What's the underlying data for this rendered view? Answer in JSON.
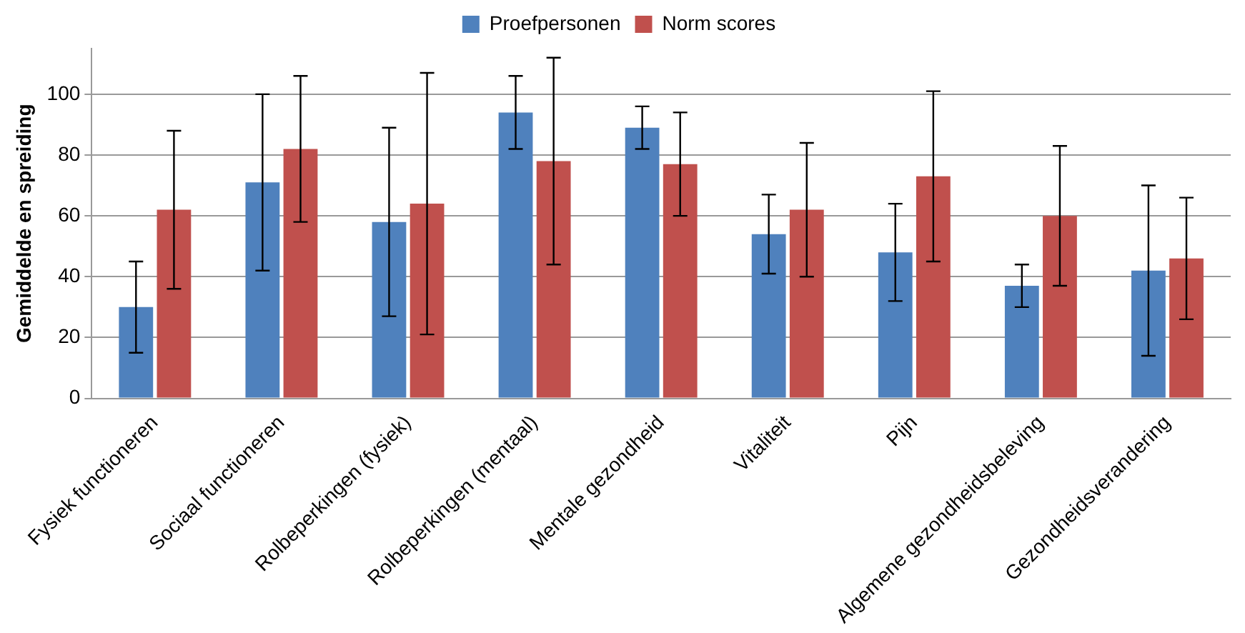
{
  "chart_data": {
    "type": "bar",
    "ylabel": "Gemiddelde en spreiding",
    "categories": [
      "Fysiek functioneren",
      "Sociaal functioneren",
      "Rolbeperkingen (fysiek)",
      "Rolbeperkingen (mentaal)",
      "Mentale gezondheid",
      "Vitaliteit",
      "Pijn",
      "Algemene gezondheidsbeleving",
      "Gezondheidsverandering"
    ],
    "series": [
      {
        "name": "Proefpersonen",
        "color": "#4f81bd",
        "values": [
          30,
          71,
          58,
          94,
          89,
          54,
          48,
          37,
          42
        ],
        "errors": [
          15,
          29,
          31,
          12,
          7,
          13,
          16,
          7,
          28
        ]
      },
      {
        "name": "Norm scores",
        "color": "#c0504d",
        "values": [
          62,
          82,
          64,
          78,
          77,
          62,
          73,
          60,
          46
        ],
        "errors": [
          26,
          24,
          43,
          34,
          17,
          22,
          28,
          23,
          20
        ]
      }
    ],
    "ylim": [
      0,
      115
    ],
    "yticks": [
      0,
      20,
      40,
      60,
      80,
      100
    ],
    "grid": "y",
    "legend": "top"
  }
}
